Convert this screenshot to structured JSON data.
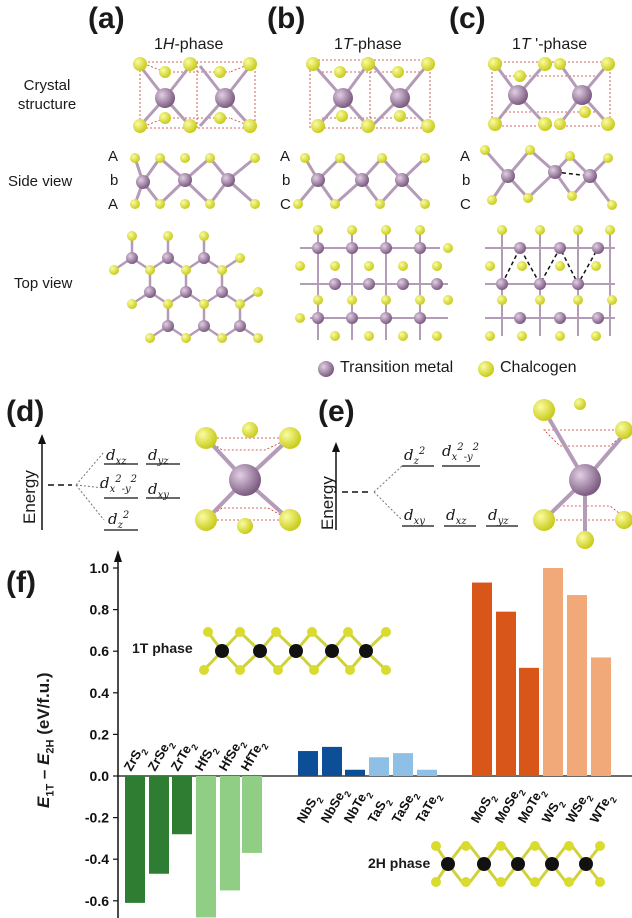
{
  "panels": {
    "a": {
      "letter": "(a)",
      "title": "1H-phase"
    },
    "b": {
      "letter": "(b)",
      "title": "1T-phase"
    },
    "c": {
      "letter": "(c)",
      "title": "1T '-phase"
    },
    "d": {
      "letter": "(d)"
    },
    "e": {
      "letter": "(e)"
    },
    "f": {
      "letter": "(f)"
    }
  },
  "row_labels": {
    "crystal_1": "Crystal",
    "crystal_2": "structure",
    "side": "Side view",
    "top": "Top view"
  },
  "stacking": {
    "a": [
      "A",
      "b",
      "A"
    ],
    "b": [
      "A",
      "b",
      "C"
    ],
    "c": [
      "A",
      "b",
      "C"
    ]
  },
  "legend": {
    "metal": "Transition metal",
    "chalcogen": "Chalcogen"
  },
  "colors": {
    "metal": "#9a7b9f",
    "chalcogen": "#d9dc2f",
    "zr_hf": "#2e7d32",
    "zr_hf_light": "#8fce84",
    "nb_ta": "#0d4f96",
    "nb_ta_light": "#8ec0e6",
    "mo_w": "#d9561a",
    "mo_w_light": "#f2a97a"
  },
  "energy_label": "Energy",
  "orbitals_d": {
    "top1": "dxz",
    "top2": "dyz",
    "mid1": "dx²-y²",
    "mid2": "dxy",
    "bottom": "dz²"
  },
  "orbitals_e": {
    "top1": "dz²",
    "top2": "dx²-y²",
    "bot1": "dxy",
    "bot2": "dxz",
    "bot3": "dyz"
  },
  "insets": {
    "t1": "1T phase",
    "h2": "2H phase"
  },
  "chart_data": {
    "type": "bar",
    "ylabel": "E1T − E2H (eV/f.u.)",
    "ylim": [
      -0.65,
      1.1
    ],
    "yticks": [
      "1.0",
      "0.8",
      "0.6",
      "0.4",
      "0.2",
      "0.0",
      "-0.2",
      "-0.4",
      "-0.6"
    ],
    "categories": [
      "ZrS2",
      "ZrSe2",
      "ZrTe2",
      "HfS2",
      "HfSe2",
      "HfTe2",
      "NbS2",
      "NbSe2",
      "NbTe2",
      "TaS2",
      "TaSe2",
      "TaTe2",
      "MoS2",
      "MoSe2",
      "MoTe2",
      "WS2",
      "WSe2",
      "WTe2"
    ],
    "values": [
      -0.61,
      -0.47,
      -0.28,
      -0.68,
      -0.55,
      -0.37,
      0.12,
      0.14,
      0.03,
      0.09,
      0.11,
      0.03,
      0.93,
      0.79,
      0.52,
      1.0,
      0.87,
      0.57
    ]
  }
}
